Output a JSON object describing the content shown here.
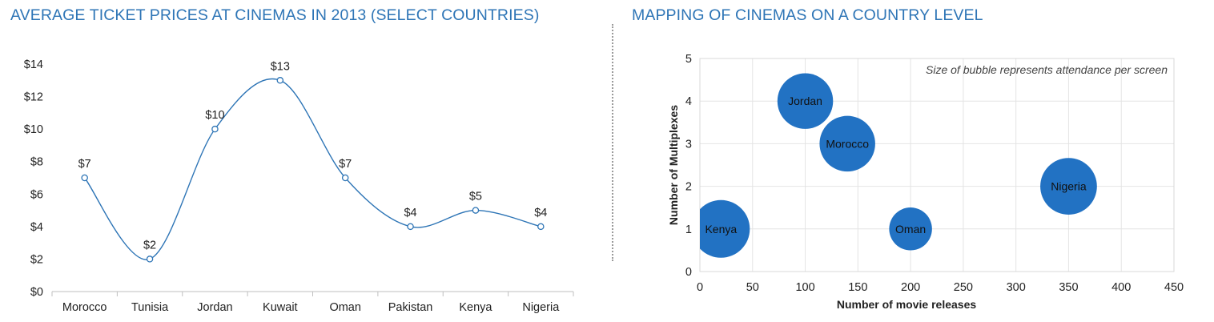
{
  "chart_data": [
    {
      "type": "line",
      "title": "AVERAGE TICKET PRICES AT CINEMAS IN 2013 (SELECT COUNTRIES)",
      "categories": [
        "Morocco",
        "Tunisia",
        "Jordan",
        "Kuwait",
        "Oman",
        "Pakistan",
        "Kenya",
        "Nigeria"
      ],
      "values": [
        7,
        2,
        10,
        13,
        7,
        4,
        5,
        4
      ],
      "data_labels": [
        "$7",
        "$2",
        "$10",
        "$13",
        "$7",
        "$4",
        "$5",
        "$4"
      ],
      "yticks": [
        "$0",
        "$2",
        "$4",
        "$6",
        "$8",
        "$10",
        "$12",
        "$14"
      ],
      "ylim": [
        0,
        14
      ],
      "smooth": true,
      "grid": false,
      "colors": {
        "line": "#2E75B6",
        "marker_fill": "#ffffff"
      }
    },
    {
      "type": "scatter",
      "title": "MAPPING OF CINEMAS ON A COUNTRY LEVEL",
      "xlabel": "Number of movie releases",
      "ylabel": "Number of Multiplexes",
      "annotation": "Size of bubble represents attendance per screen",
      "points": [
        {
          "label": "Jordan",
          "x": 100,
          "y": 4,
          "size": 27
        },
        {
          "label": "Morocco",
          "x": 140,
          "y": 3,
          "size": 27
        },
        {
          "label": "Nigeria",
          "x": 350,
          "y": 2,
          "size": 28
        },
        {
          "label": "Kenya",
          "x": 20,
          "y": 1,
          "size": 29
        },
        {
          "label": "Oman",
          "x": 200,
          "y": 1,
          "size": 16
        }
      ],
      "xticks": [
        "0",
        "50",
        "100",
        "150",
        "200",
        "250",
        "300",
        "350",
        "400",
        "450"
      ],
      "yticks": [
        "0",
        "1",
        "2",
        "3",
        "4",
        "5"
      ],
      "xlim": [
        0,
        450
      ],
      "ylim": [
        0,
        5
      ],
      "grid": true,
      "colors": {
        "bubble": "#2272C3",
        "grid": "#e4e4e4"
      }
    }
  ]
}
